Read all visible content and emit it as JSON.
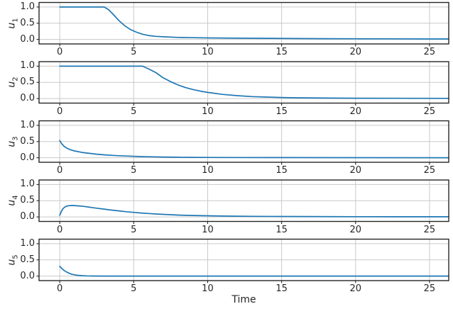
{
  "chart_data": {
    "type": "line",
    "title": "",
    "xlabel": "Time",
    "grid": true,
    "legend": "none",
    "line_color": "#1f77b4",
    "grid_color": "#c9c9c9",
    "spine_color": "#262626",
    "background_color": "#ffffff",
    "xlim": [
      -1.4,
      26.3
    ],
    "ylim": [
      -0.14,
      1.14
    ],
    "x_ticks": {
      "values": [
        0,
        5,
        10,
        15,
        20,
        25
      ],
      "labels": [
        "0",
        "5",
        "10",
        "15",
        "20",
        "25"
      ]
    },
    "y_ticks": {
      "values": [
        0.0,
        0.5,
        1.0
      ],
      "labels": [
        "0.0",
        "0.5",
        "1.0"
      ]
    },
    "subplots": [
      {
        "ylabel_base": "u",
        "ylabel_sub": "1",
        "points": [
          [
            0,
            1
          ],
          [
            3,
            1
          ],
          [
            3.3,
            0.92
          ],
          [
            3.6,
            0.78
          ],
          [
            4,
            0.58
          ],
          [
            4.4,
            0.42
          ],
          [
            4.8,
            0.3
          ],
          [
            5.2,
            0.22
          ],
          [
            5.6,
            0.16
          ],
          [
            6,
            0.12
          ],
          [
            6.5,
            0.095
          ],
          [
            7,
            0.08
          ],
          [
            8,
            0.062
          ],
          [
            9,
            0.052
          ],
          [
            10,
            0.046
          ],
          [
            12,
            0.038
          ],
          [
            14,
            0.032
          ],
          [
            16,
            0.027
          ],
          [
            18,
            0.023
          ],
          [
            20,
            0.02
          ],
          [
            22,
            0.017
          ],
          [
            25,
            0.014
          ],
          [
            26.3,
            0.013
          ]
        ]
      },
      {
        "ylabel_base": "u",
        "ylabel_sub": "2",
        "points": [
          [
            0,
            1
          ],
          [
            5.6,
            1
          ],
          [
            6,
            0.92
          ],
          [
            6.5,
            0.8
          ],
          [
            7,
            0.64
          ],
          [
            7.5,
            0.52
          ],
          [
            8,
            0.42
          ],
          [
            8.5,
            0.34
          ],
          [
            9,
            0.28
          ],
          [
            9.5,
            0.23
          ],
          [
            10,
            0.19
          ],
          [
            11,
            0.13
          ],
          [
            12,
            0.09
          ],
          [
            13,
            0.062
          ],
          [
            14,
            0.045
          ],
          [
            15,
            0.033
          ],
          [
            16,
            0.025
          ],
          [
            18,
            0.016
          ],
          [
            20,
            0.011
          ],
          [
            23,
            0.008
          ],
          [
            26.3,
            0.006
          ]
        ]
      },
      {
        "ylabel_base": "u",
        "ylabel_sub": "3",
        "points": [
          [
            0,
            0.53
          ],
          [
            0.15,
            0.42
          ],
          [
            0.3,
            0.35
          ],
          [
            0.5,
            0.29
          ],
          [
            0.75,
            0.24
          ],
          [
            1,
            0.21
          ],
          [
            1.5,
            0.165
          ],
          [
            2,
            0.135
          ],
          [
            2.5,
            0.11
          ],
          [
            3,
            0.09
          ],
          [
            3.5,
            0.075
          ],
          [
            4,
            0.062
          ],
          [
            4.5,
            0.052
          ],
          [
            5,
            0.043
          ],
          [
            5.5,
            0.036
          ],
          [
            6,
            0.03
          ],
          [
            7,
            0.021
          ],
          [
            8,
            0.015
          ],
          [
            9,
            0.011
          ],
          [
            10,
            0.009
          ],
          [
            12,
            0.006
          ],
          [
            15,
            0.004
          ],
          [
            20,
            0.002
          ],
          [
            26.3,
            0.001
          ]
        ]
      },
      {
        "ylabel_base": "u",
        "ylabel_sub": "4",
        "points": [
          [
            0,
            0.05
          ],
          [
            0.1,
            0.16
          ],
          [
            0.2,
            0.24
          ],
          [
            0.3,
            0.29
          ],
          [
            0.45,
            0.33
          ],
          [
            0.6,
            0.345
          ],
          [
            0.8,
            0.352
          ],
          [
            1,
            0.35
          ],
          [
            1.3,
            0.34
          ],
          [
            1.6,
            0.325
          ],
          [
            2,
            0.3
          ],
          [
            2.5,
            0.27
          ],
          [
            3,
            0.24
          ],
          [
            3.5,
            0.21
          ],
          [
            4,
            0.185
          ],
          [
            4.5,
            0.16
          ],
          [
            5,
            0.14
          ],
          [
            5.5,
            0.12
          ],
          [
            6,
            0.105
          ],
          [
            6.5,
            0.09
          ],
          [
            7,
            0.078
          ],
          [
            8,
            0.058
          ],
          [
            9,
            0.044
          ],
          [
            10,
            0.034
          ],
          [
            11,
            0.027
          ],
          [
            12,
            0.022
          ],
          [
            13,
            0.018
          ],
          [
            15,
            0.013
          ],
          [
            17,
            0.01
          ],
          [
            20,
            0.007
          ],
          [
            23,
            0.005
          ],
          [
            26.3,
            0.004
          ]
        ]
      },
      {
        "ylabel_base": "u",
        "ylabel_sub": "5",
        "points": [
          [
            0,
            0.3
          ],
          [
            0.15,
            0.23
          ],
          [
            0.3,
            0.17
          ],
          [
            0.45,
            0.13
          ],
          [
            0.6,
            0.095
          ],
          [
            0.8,
            0.06
          ],
          [
            1,
            0.04
          ],
          [
            1.2,
            0.025
          ],
          [
            1.5,
            0.013
          ],
          [
            1.8,
            0.007
          ],
          [
            2.2,
            0.003
          ],
          [
            3,
            0.001
          ],
          [
            5,
            0
          ],
          [
            10,
            0
          ],
          [
            26.3,
            0
          ]
        ]
      }
    ]
  }
}
